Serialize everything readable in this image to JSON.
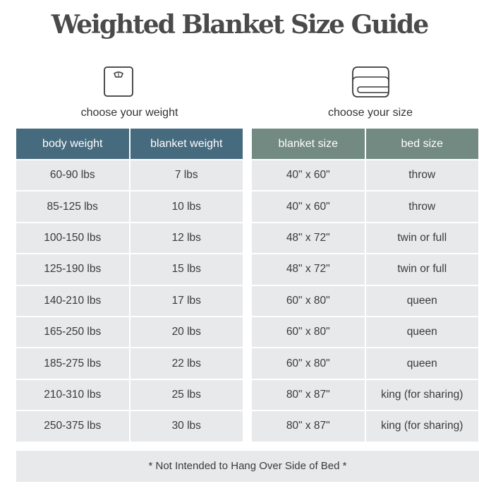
{
  "title": "Weighted Blanket Size Guide",
  "weight_section": {
    "label": "choose your weight",
    "icon": "scale-icon",
    "headers": [
      "body weight",
      "blanket weight"
    ],
    "rows": [
      [
        "60-90 lbs",
        "7 lbs"
      ],
      [
        "85-125 lbs",
        "10 lbs"
      ],
      [
        "100-150 lbs",
        "12 lbs"
      ],
      [
        "125-190 lbs",
        "15 lbs"
      ],
      [
        "140-210 lbs",
        "17 lbs"
      ],
      [
        "165-250 lbs",
        "20 lbs"
      ],
      [
        "185-275 lbs",
        "22 lbs"
      ],
      [
        "210-310 lbs",
        "25 lbs"
      ],
      [
        "250-375 lbs",
        "30 lbs"
      ]
    ]
  },
  "size_section": {
    "label": "choose your size",
    "icon": "folded-blanket-icon",
    "headers": [
      "blanket size",
      "bed size"
    ],
    "rows": [
      [
        "40\" x 60\"",
        "throw"
      ],
      [
        "40\" x 60\"",
        "throw"
      ],
      [
        "48\" x 72\"",
        "twin or full"
      ],
      [
        "48\" x 72\"",
        "twin or full"
      ],
      [
        "60\" x 80\"",
        "queen"
      ],
      [
        "60\" x 80\"",
        "queen"
      ],
      [
        "60\" x 80\"",
        "queen"
      ],
      [
        "80\" x 87\"",
        "king (for sharing)"
      ],
      [
        "80\" x 87\"",
        "king (for sharing)"
      ]
    ]
  },
  "footnote": "* Not Intended to Hang Over Side of Bed *",
  "colors": {
    "weight_header": "#466a7e",
    "size_header": "#728a81",
    "cell": "#e8e9eb"
  }
}
